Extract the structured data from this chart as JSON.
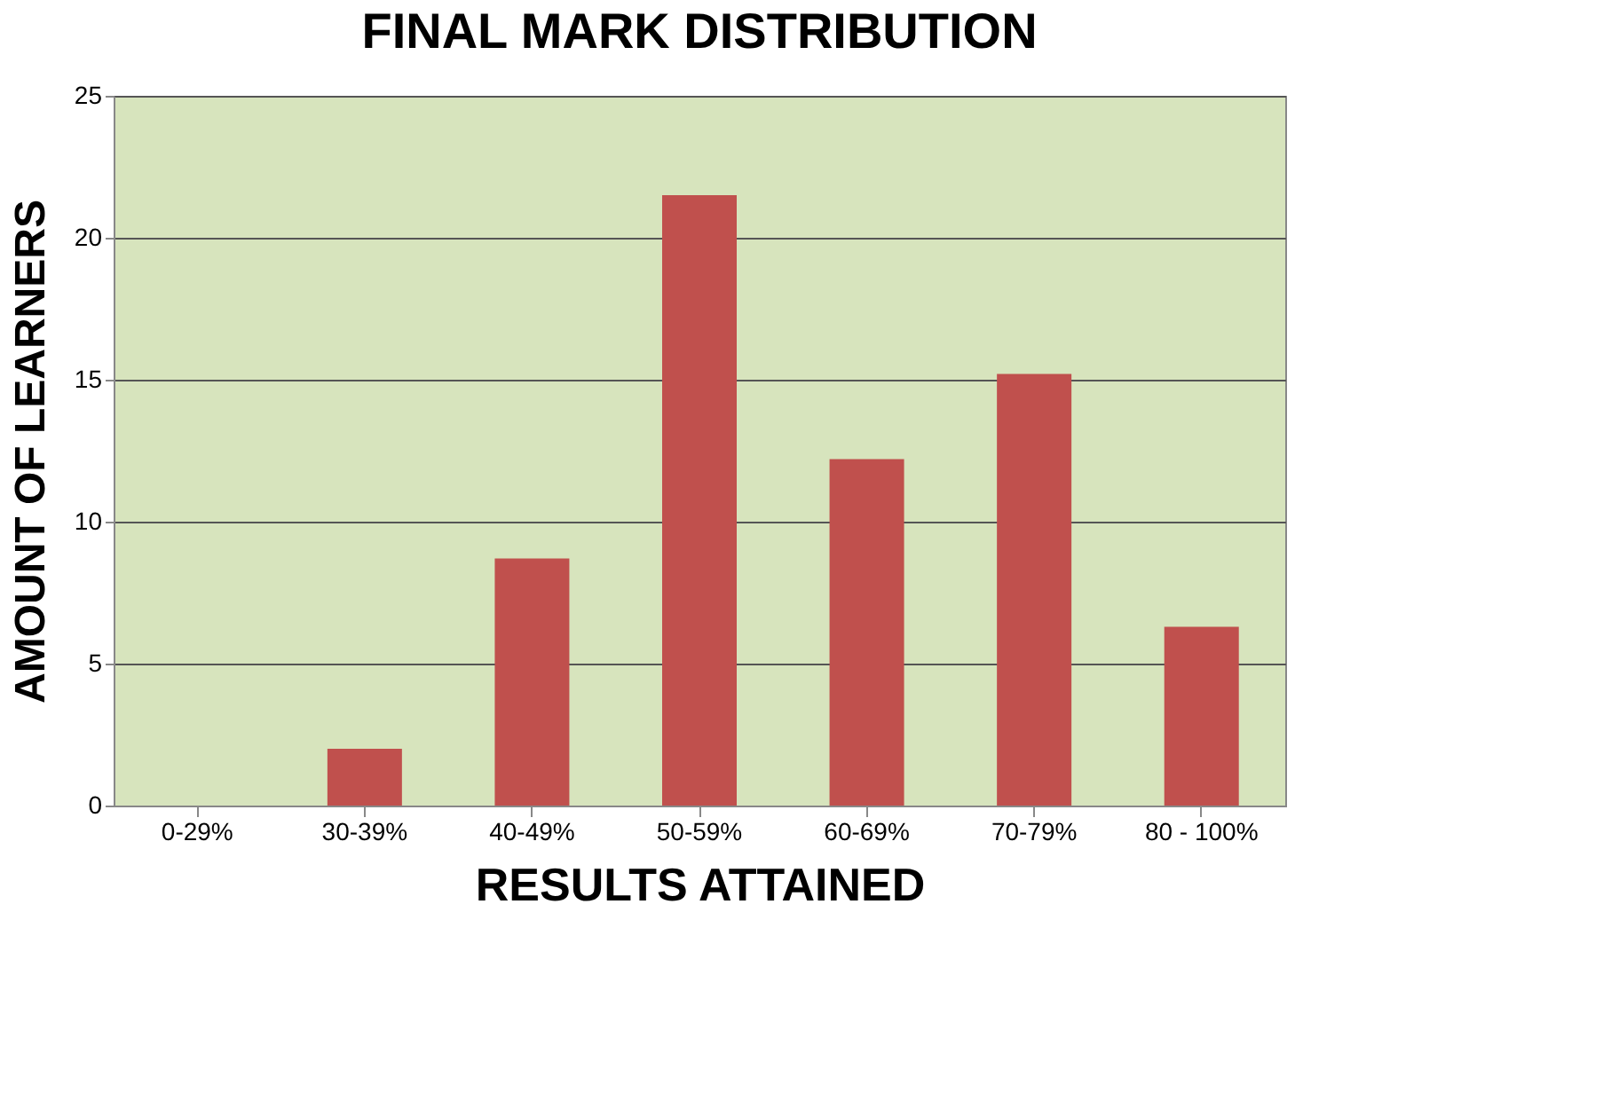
{
  "chart_data": {
    "type": "bar",
    "title": "FINAL MARK DISTRIBUTION",
    "xlabel": "RESULTS ATTAINED",
    "ylabel": "AMOUNT OF LEARNERS",
    "categories": [
      "0-29%",
      "30-39%",
      "40-49%",
      "50-59%",
      "60-69%",
      "70-79%",
      "80 - 100%"
    ],
    "values": [
      0,
      2,
      8.7,
      21.5,
      12.2,
      15.2,
      6.3
    ],
    "color": "#c0504d",
    "ylim": [
      0,
      25
    ],
    "yticks": [
      0,
      5,
      10,
      15,
      20,
      25
    ],
    "grid": "y"
  }
}
